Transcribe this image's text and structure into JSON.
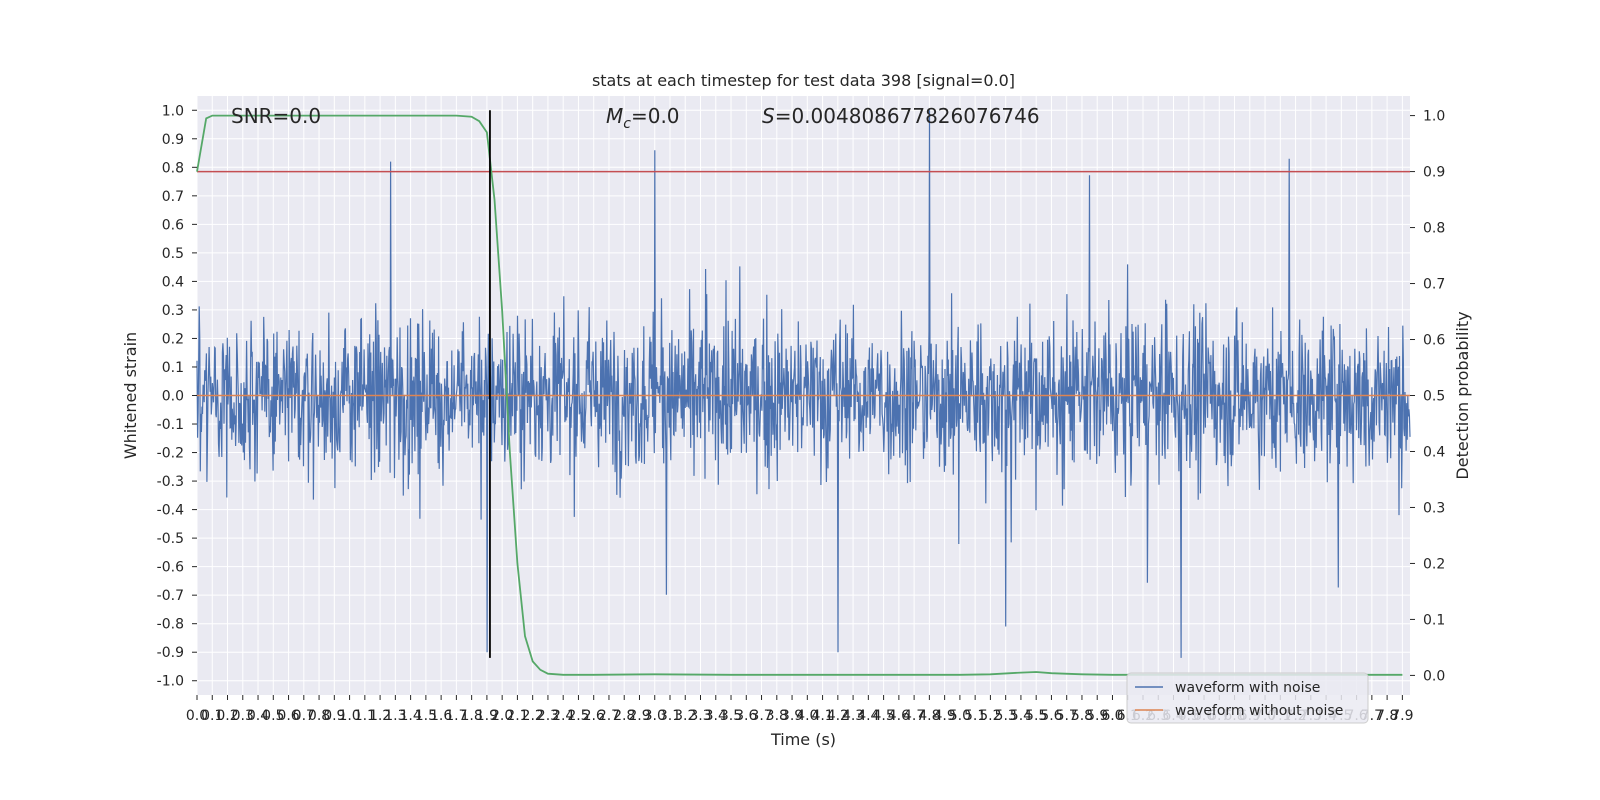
{
  "chart_data": {
    "type": "line",
    "title": "stats at each timestep for test data 398 [signal=0.0]",
    "xlabel": "Time (s)",
    "ylabel": "Whitened strain",
    "y2label": "Detection probability",
    "xlim": [
      0.0,
      7.95
    ],
    "ylim": [
      -1.05,
      1.05
    ],
    "y2lim": [
      -0.035,
      1.035
    ],
    "grid": true,
    "annotations": {
      "snr": "SNR=0.0",
      "mc_symbol": "M",
      "mc_sub": "c",
      "mc_value": "=0.0",
      "s_symbol": "S",
      "s_value": "=0.004808677826076746"
    },
    "x_ticks": [
      "0.0",
      "0.1",
      "0.2",
      "0.3",
      "0.4",
      "0.5",
      "0.6",
      "0.7",
      "0.8",
      "0.9",
      "1.0",
      "1.1",
      "1.2",
      "1.3",
      "1.4",
      "1.5",
      "1.6",
      "1.7",
      "1.8",
      "1.9",
      "2.0",
      "2.1",
      "2.2",
      "2.3",
      "2.4",
      "2.5",
      "2.6",
      "2.7",
      "2.8",
      "2.9",
      "3.0",
      "3.1",
      "3.2",
      "3.3",
      "3.4",
      "3.5",
      "3.6",
      "3.7",
      "3.8",
      "3.9",
      "4.0",
      "4.1",
      "4.2",
      "4.3",
      "4.4",
      "4.5",
      "4.6",
      "4.7",
      "4.8",
      "4.9",
      "5.0",
      "5.1",
      "5.2",
      "5.3",
      "5.4",
      "5.5",
      "5.6",
      "5.7",
      "5.8",
      "5.9",
      "6.0",
      "6.1",
      "6.2",
      "6.3",
      "6.4",
      "6.5",
      "6.6",
      "6.7",
      "6.8",
      "6.9",
      "7.0",
      "7.1",
      "7.2",
      "7.3",
      "7.4",
      "7.5",
      "7.6",
      "7.7",
      "7.8",
      "7.9"
    ],
    "y_ticks": [
      "1.0",
      "0.9",
      "0.8",
      "0.7",
      "0.6",
      "0.5",
      "0.4",
      "0.3",
      "0.2",
      "0.1",
      "0.0",
      "-0.1",
      "-0.2",
      "-0.3",
      "-0.4",
      "-0.5",
      "-0.6",
      "-0.7",
      "-0.8",
      "-0.9",
      "-1.0"
    ],
    "y2_ticks": [
      "1.0",
      "0.9",
      "0.8",
      "0.7",
      "0.6",
      "0.5",
      "0.4",
      "0.3",
      "0.2",
      "0.1",
      "0.0"
    ],
    "series": [
      {
        "name": "waveform with noise",
        "color": "#4c72b0",
        "y_range_approx": [
          -0.9,
          1.0
        ],
        "description_values": {
          "typical_band": [
            -0.5,
            0.5
          ],
          "peak_max": 1.0,
          "peak_min": -0.9
        }
      },
      {
        "name": "waveform without noise",
        "color": "#dd8452",
        "x": [
          0.0,
          7.95
        ],
        "y": [
          0.0,
          0.0
        ]
      },
      {
        "color": "#55a868",
        "axis": "right",
        "x": [
          0.0,
          0.06,
          0.1,
          0.2,
          0.5,
          1.0,
          1.5,
          1.7,
          1.8,
          1.85,
          1.9,
          1.95,
          2.0,
          2.05,
          2.1,
          2.15,
          2.2,
          2.25,
          2.3,
          2.4,
          2.6,
          3.0,
          3.5,
          4.0,
          5.0,
          5.2,
          5.4,
          5.5,
          5.6,
          5.8,
          6.0,
          7.0,
          7.9
        ],
        "y": [
          0.9,
          0.995,
          1.0,
          1.0,
          1.0,
          1.0,
          1.0,
          1.0,
          0.998,
          0.99,
          0.97,
          0.85,
          0.65,
          0.4,
          0.2,
          0.07,
          0.025,
          0.01,
          0.003,
          0.001,
          0.001,
          0.002,
          0.001,
          0.001,
          0.001,
          0.002,
          0.005,
          0.006,
          0.004,
          0.002,
          0.001,
          0.001,
          0.001
        ]
      },
      {
        "color": "#c44e52",
        "axis": "right",
        "x": [
          0.0,
          7.95
        ],
        "y": [
          0.9,
          0.9
        ]
      },
      {
        "color": "#000000",
        "type": "vline",
        "x": 1.92,
        "ylim": [
          -0.92,
          1.0
        ]
      }
    ],
    "legend": {
      "placement": "lower-right",
      "entries": [
        {
          "label": "waveform with noise",
          "color": "#4c72b0"
        },
        {
          "label": "waveform without noise",
          "color": "#dd8452"
        }
      ]
    },
    "colors": {
      "axes_bg": "#eaeaf2",
      "grid": "#ffffff",
      "noise": "#4c72b0",
      "clean": "#dd8452",
      "prob": "#55a868",
      "threshold": "#c44e52",
      "marker": "#000000"
    }
  }
}
